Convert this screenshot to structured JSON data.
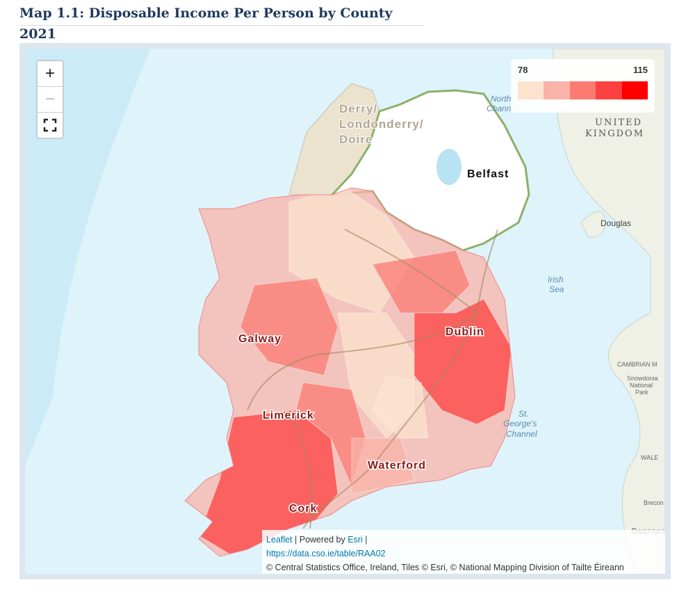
{
  "header": {
    "title": "Map 1.1: Disposable Income Per Person by County 2021"
  },
  "controls": {
    "zoom_in": "+",
    "zoom_out": "−"
  },
  "legend": {
    "min": 78,
    "max": 115,
    "colors": [
      "#fbe3cf",
      "#f9b3a8",
      "#fb7b73",
      "#fd4040",
      "#ff0000"
    ]
  },
  "map": {
    "counties": [
      "Derry/",
      "Londonderry/",
      "Doire",
      "Belfast",
      "Galway",
      "Dublin",
      "Limerick",
      "Waterford",
      "Cork"
    ],
    "places": [
      "North",
      "Channel",
      "UNITED",
      "KINGDOM",
      "Douglas",
      "Irish",
      "Sea",
      "St.",
      "George's",
      "Channel",
      "CAMBRIAN M",
      "Snowdonia",
      "National",
      "Park",
      "WALE",
      "Brecon",
      "Swansea"
    ]
  },
  "attribution": {
    "leaflet": "Leaflet",
    "powered": "| Powered by",
    "esri": "Esri",
    "sep": "|",
    "url": "https://data.cso.ie/table/RAA02",
    "credits": "© Central Statistics Office, Ireland, Tiles © Esri, © National Mapping Division of Tailte Éireann"
  }
}
